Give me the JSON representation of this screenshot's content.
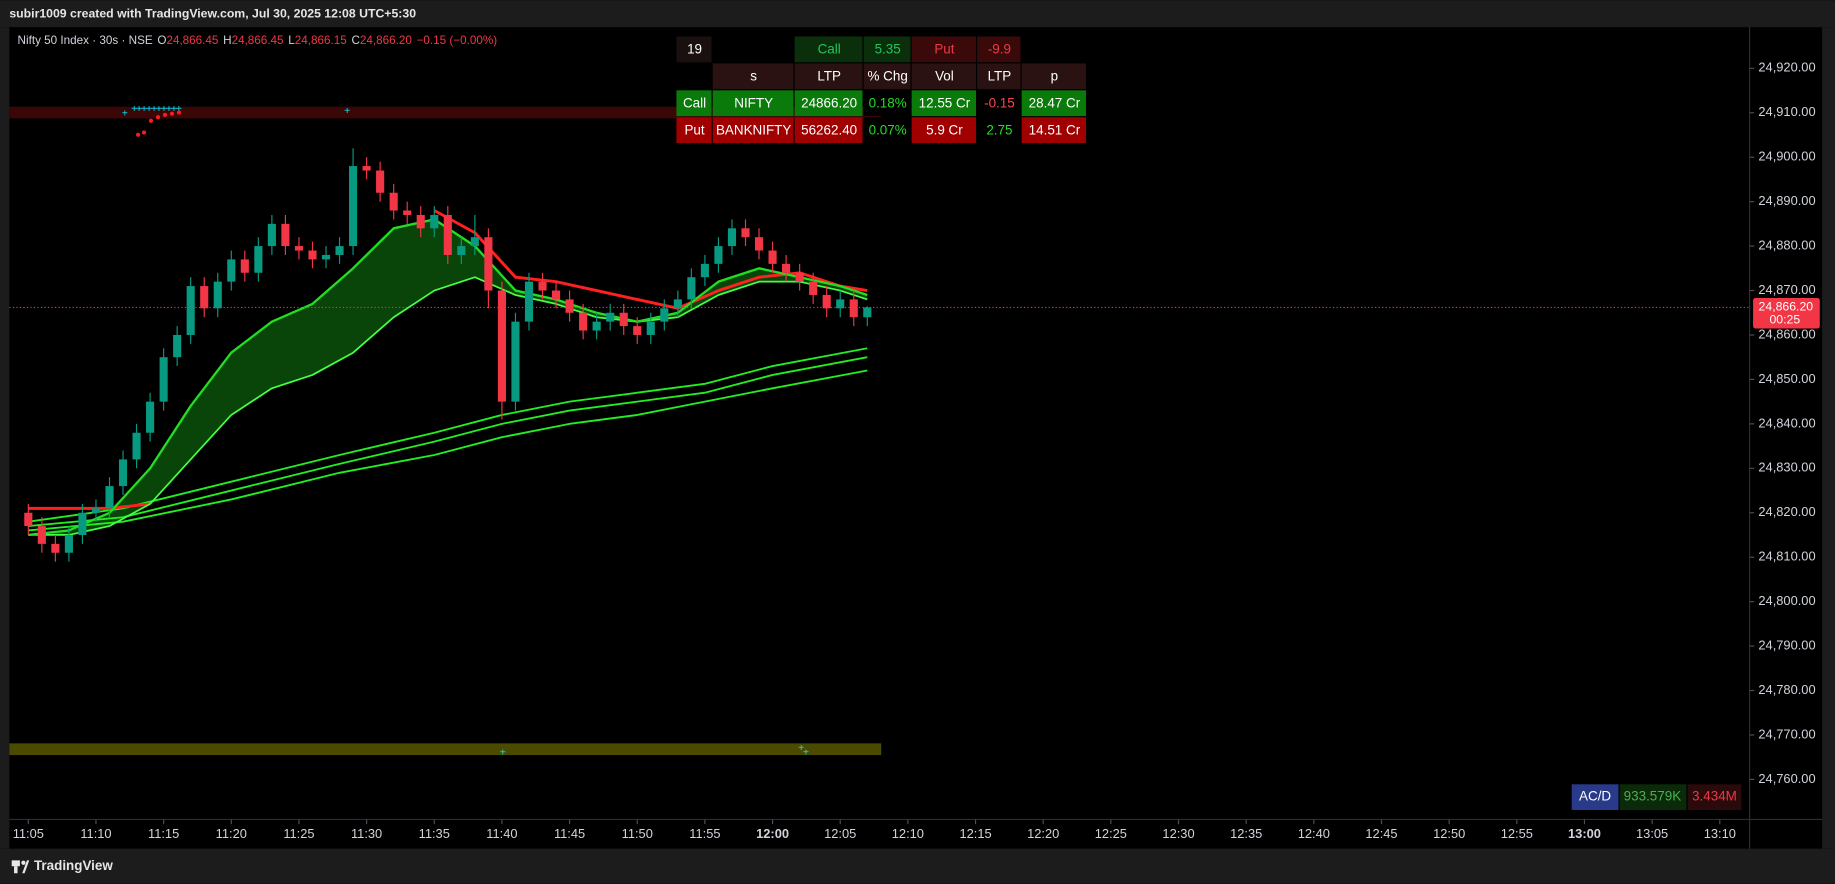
{
  "header": {
    "text": "subir1009 created with TradingView.com, Jul 30, 2025 12:08 UTC+5:30"
  },
  "legend": {
    "symbol": "Nifty 50 Index · 30s · NSE",
    "ohlc_labels": [
      "O",
      "H",
      "L",
      "C"
    ],
    "ohlc_values": [
      "24,866.45",
      "24,866.45",
      "24,866.15",
      "24,866.20"
    ],
    "change": "−0.15 (−0.00%)"
  },
  "table": {
    "rows": [
      [
        "19",
        null,
        "Call",
        "5.35",
        "Put",
        "-9.9",
        null
      ],
      [
        null,
        "s",
        "LTP",
        "% Chg",
        "Vol",
        "LTP",
        "p"
      ],
      [
        "Call",
        "NIFTY",
        "24866.20",
        "0.18%",
        "12.55 Cr",
        "-0.15",
        "28.47 Cr"
      ],
      [
        "Put",
        "BANKNIFTY",
        "56262.40",
        "0.07%",
        "5.9 Cr",
        "2.75",
        "14.51 Cr"
      ]
    ]
  },
  "acd": {
    "label": "AC/D",
    "values": [
      "933.579K",
      "3.434M"
    ]
  },
  "footer": {
    "brand": "TradingView"
  },
  "chart_data": {
    "type": "candlestick",
    "up_color": "#089981",
    "down_color": "#f23645",
    "grid": false,
    "x": [
      665,
      666,
      667,
      668,
      669,
      670,
      671,
      672,
      673,
      674,
      675,
      676,
      677,
      678,
      679,
      680,
      681,
      682,
      683,
      684,
      685,
      686,
      687,
      688,
      689,
      690,
      691,
      692,
      693,
      694,
      695,
      696,
      697,
      698,
      699,
      700,
      701,
      702,
      703,
      704,
      705,
      706,
      707,
      708,
      709,
      710,
      711,
      712,
      713,
      714,
      715,
      716,
      717,
      718,
      719,
      720,
      721,
      722,
      723,
      724,
      725,
      726,
      727
    ],
    "open": [
      24820,
      24817,
      24813,
      24811,
      24815,
      24820,
      24821,
      24826,
      24832,
      24838,
      24845,
      24855,
      24860,
      24871,
      24866,
      24872,
      24877,
      24874,
      24880,
      24885,
      24880,
      24879,
      24877,
      24878,
      24880,
      24898,
      24897,
      24892,
      24888,
      24887,
      24884,
      24887,
      24878,
      24880,
      24882,
      24870,
      24845,
      24863,
      24872,
      24870,
      24868,
      24865,
      24861,
      24863,
      24865,
      24862,
      24860,
      24863,
      24866,
      24868,
      24873,
      24876,
      24880,
      24884,
      24882,
      24879,
      24876,
      24874,
      24872,
      24869,
      24866,
      24868,
      24864
    ],
    "high": [
      24822,
      24819,
      24815,
      24817,
      24822,
      24823,
      24828,
      24834,
      24840,
      24847,
      24857,
      24862,
      24873,
      24873,
      24874,
      24879,
      24879,
      24882,
      24887,
      24887,
      24882,
      24881,
      24880,
      24882,
      24902,
      24900,
      24899,
      24894,
      24890,
      24889,
      24889,
      24889,
      24882,
      24887,
      24884,
      24872,
      24865,
      24874,
      24874,
      24872,
      24870,
      24867,
      24865,
      24867,
      24867,
      24864,
      24865,
      24868,
      24870,
      24875,
      24878,
      24882,
      24886,
      24886,
      24884,
      24881,
      24878,
      24876,
      24874,
      24871,
      24870,
      24870,
      24866.45
    ],
    "low": [
      24815,
      24811,
      24809,
      24809,
      24813,
      24818,
      24819,
      24824,
      24830,
      24836,
      24843,
      24853,
      24858,
      24864,
      24864,
      24870,
      24872,
      24872,
      24878,
      24878,
      24877,
      24875,
      24875,
      24876,
      24878,
      24895,
      24890,
      24886,
      24885,
      24882,
      24882,
      24876,
      24876,
      24878,
      24866,
      24841,
      24843,
      24861,
      24868,
      24866,
      24863,
      24859,
      24859,
      24861,
      24860,
      24858,
      24858,
      24861,
      24864,
      24866,
      24871,
      24874,
      24878,
      24880,
      24877,
      24874,
      24872,
      24870,
      24867,
      24864,
      24864,
      24862,
      24862
    ],
    "close": [
      24817,
      24813,
      24811,
      24815,
      24820,
      24821,
      24826,
      24832,
      24838,
      24845,
      24855,
      24860,
      24871,
      24866,
      24872,
      24877,
      24874,
      24880,
      24885,
      24880,
      24879,
      24877,
      24878,
      24880,
      24898,
      24897,
      24892,
      24888,
      24887,
      24884,
      24887,
      24878,
      24880,
      24882,
      24870,
      24845,
      24863,
      24872,
      24870,
      24868,
      24865,
      24861,
      24863,
      24865,
      24862,
      24860,
      24863,
      24866,
      24868,
      24873,
      24876,
      24880,
      24884,
      24882,
      24879,
      24876,
      24874,
      24872,
      24869,
      24866,
      24868,
      24864,
      24866.2
    ],
    "cloud_color": "rgba(20,150,20,0.45)",
    "lines": [
      {
        "color": "#22dd22",
        "width": 2,
        "x": [
          665,
          668,
          671,
          674,
          677,
          680,
          683,
          686,
          689,
          692,
          695,
          698,
          701,
          704,
          707,
          710,
          713,
          716,
          719,
          722,
          725,
          727
        ],
        "values": [
          24815,
          24816,
          24820,
          24830,
          24844,
          24856,
          24863,
          24867,
          24875,
          24884,
          24886,
          24880,
          24870,
          24868,
          24865,
          24863,
          24865,
          24872,
          24875,
          24873,
          24871,
          24869
        ]
      },
      {
        "color": "#44ff44",
        "width": 1.5,
        "x": [
          665,
          668,
          671,
          674,
          677,
          680,
          683,
          686,
          689,
          692,
          695,
          698,
          701,
          704,
          707,
          710,
          713,
          716,
          719,
          722,
          725,
          727
        ],
        "values": [
          24815,
          24815,
          24817,
          24822,
          24832,
          24842,
          24848,
          24851,
          24856,
          24864,
          24870,
          24873,
          24869,
          24867,
          24864,
          24863,
          24864,
          24869,
          24872,
          24872,
          24870,
          24868
        ]
      },
      {
        "color": "#ff2020",
        "width": 2.5,
        "x": [
          665,
          668,
          671,
          674,
          677,
          680,
          683,
          686,
          689,
          692,
          695,
          698,
          701,
          704,
          707,
          710,
          713,
          716,
          719,
          722,
          725,
          727
        ],
        "values": [
          24821,
          24821,
          24821,
          24822,
          null,
          null,
          null,
          null,
          null,
          null,
          24888,
          24883,
          24873,
          24872,
          24870,
          24868,
          24866,
          24870,
          24873,
          24874,
          24871,
          24870
        ]
      },
      {
        "color": "#22ee22",
        "width": 1.6,
        "x": [
          665,
          672,
          680,
          688,
          695,
          700,
          705,
          710,
          715,
          720,
          727
        ],
        "values": [
          24818,
          24821,
          24827,
          24833,
          24838,
          24842,
          24845,
          24847,
          24849,
          24853,
          24857
        ]
      },
      {
        "color": "#22ee22",
        "width": 1.6,
        "x": [
          665,
          672,
          680,
          688,
          695,
          700,
          705,
          710,
          715,
          720,
          727
        ],
        "values": [
          24817,
          24819,
          24825,
          24831,
          24836,
          24840,
          24843,
          24845,
          24847,
          24851,
          24855
        ]
      },
      {
        "color": "#22ee22",
        "width": 1.6,
        "x": [
          665,
          672,
          680,
          688,
          695,
          700,
          705,
          710,
          715,
          720,
          727
        ],
        "values": [
          24816,
          24818,
          24823,
          24829,
          24833,
          24837,
          24840,
          24842,
          24845,
          24848,
          24852
        ]
      }
    ],
    "last_price": 24866.2,
    "last_price_label": "24,866.20",
    "countdown": "00:25",
    "xlim": [
      663.6,
      792.2
    ],
    "xticks": [
      {
        "value": 665,
        "label": "11:05"
      },
      {
        "value": 670,
        "label": "11:10"
      },
      {
        "value": 675,
        "label": "11:15"
      },
      {
        "value": 680,
        "label": "11:20"
      },
      {
        "value": 685,
        "label": "11:25"
      },
      {
        "value": 690,
        "label": "11:30"
      },
      {
        "value": 695,
        "label": "11:35"
      },
      {
        "value": 700,
        "label": "11:40"
      },
      {
        "value": 705,
        "label": "11:45"
      },
      {
        "value": 710,
        "label": "11:50"
      },
      {
        "value": 715,
        "label": "11:55"
      },
      {
        "value": 720,
        "label": "12:00"
      },
      {
        "value": 725,
        "label": "12:05"
      },
      {
        "value": 730,
        "label": "12:10"
      },
      {
        "value": 735,
        "label": "12:15"
      },
      {
        "value": 740,
        "label": "12:20"
      },
      {
        "value": 745,
        "label": "12:25"
      },
      {
        "value": 750,
        "label": "12:30"
      },
      {
        "value": 755,
        "label": "12:35"
      },
      {
        "value": 760,
        "label": "12:40"
      },
      {
        "value": 765,
        "label": "12:45"
      },
      {
        "value": 770,
        "label": "12:50"
      },
      {
        "value": 775,
        "label": "12:55"
      },
      {
        "value": 780,
        "label": "13:00"
      },
      {
        "value": 785,
        "label": "13:05"
      },
      {
        "value": 790,
        "label": "13:10"
      }
    ],
    "ylim": [
      24751,
      24929
    ],
    "yticks": [
      {
        "value": 24760,
        "label": "24,760.00"
      },
      {
        "value": 24770,
        "label": "24,770.00"
      },
      {
        "value": 24780,
        "label": "24,780.00"
      },
      {
        "value": 24790,
        "label": "24,790.00"
      },
      {
        "value": 24800,
        "label": "24,800.00"
      },
      {
        "value": 24810,
        "label": "24,810.00"
      },
      {
        "value": 24820,
        "label": "24,820.00"
      },
      {
        "value": 24830,
        "label": "24,830.00"
      },
      {
        "value": 24840,
        "label": "24,840.00"
      },
      {
        "value": 24850,
        "label": "24,850.00"
      },
      {
        "value": 24860,
        "label": "24,860.00"
      },
      {
        "value": 24870,
        "label": "24,870.00"
      },
      {
        "value": 24880,
        "label": "24,880.00"
      },
      {
        "value": 24890,
        "label": "24,890.00"
      },
      {
        "value": 24900,
        "label": "24,900.00"
      },
      {
        "value": 24910,
        "label": "24,910.00"
      },
      {
        "value": 24920,
        "label": "24,920.00"
      }
    ]
  }
}
